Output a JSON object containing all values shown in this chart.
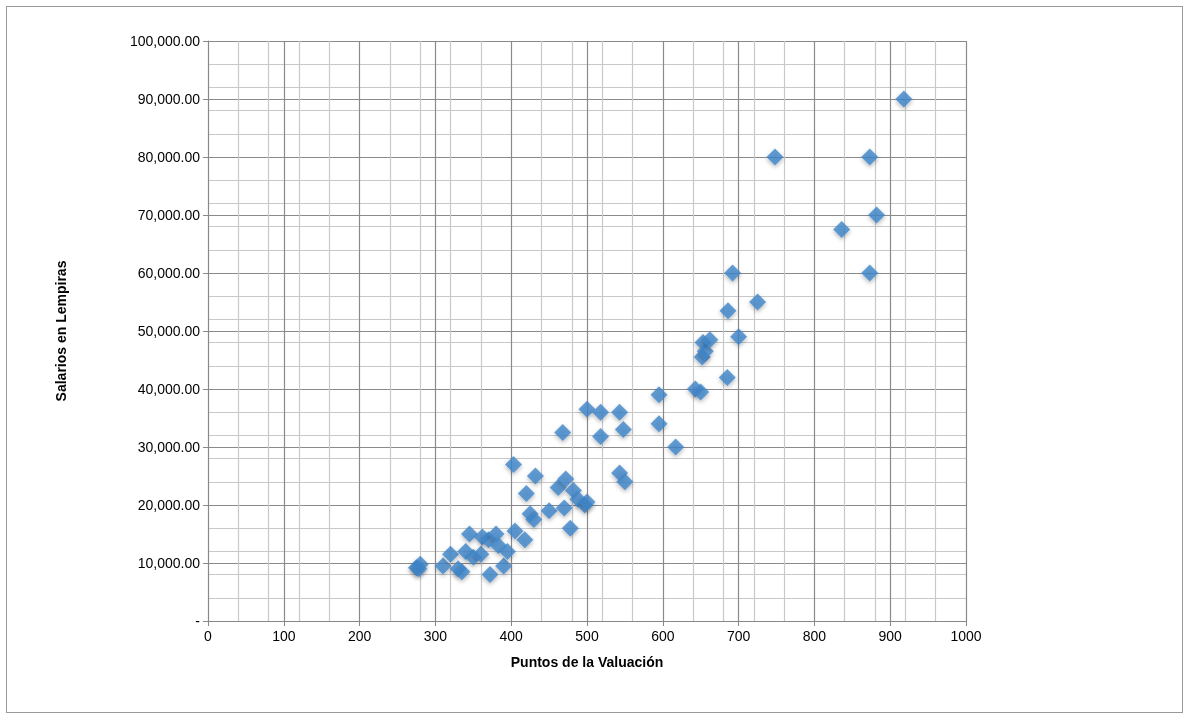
{
  "chart_data": {
    "type": "scatter",
    "xlabel": "Puntos de la Valuación",
    "ylabel": "Salarios en Lempiras",
    "marker": "diamond",
    "grid": true,
    "xlim": [
      0,
      1000
    ],
    "xticks": [
      0,
      100,
      200,
      300,
      400,
      500,
      600,
      700,
      800,
      900,
      1000
    ],
    "ylim": [
      0,
      100000
    ],
    "yticks": [
      {
        "value": 0,
        "label": "-"
      },
      {
        "value": 10000,
        "label": "10,000.00"
      },
      {
        "value": 20000,
        "label": "20,000.00"
      },
      {
        "value": 30000,
        "label": "30,000.00"
      },
      {
        "value": 40000,
        "label": "40,000.00"
      },
      {
        "value": 50000,
        "label": "50,000.00"
      },
      {
        "value": 60000,
        "label": "60,000.00"
      },
      {
        "value": 70000,
        "label": "70,000.00"
      },
      {
        "value": 80000,
        "label": "80,000.00"
      },
      {
        "value": 90000,
        "label": "90,000.00"
      },
      {
        "value": 100000,
        "label": "100,000.00"
      }
    ],
    "series": [
      {
        "color": "#3f86c9",
        "x": [
          275,
          280,
          278,
          310,
          320,
          330,
          335,
          340,
          345,
          350,
          360,
          362,
          370,
          372,
          380,
          383,
          390,
          395,
          405,
          403,
          418,
          420,
          425,
          430,
          432,
          450,
          462,
          468,
          470,
          472,
          478,
          482,
          488,
          497,
          500,
          500,
          518,
          518,
          543,
          543,
          548,
          550,
          595,
          595,
          617,
          643,
          650,
          652,
          653,
          656,
          662,
          685,
          686,
          692,
          700,
          725,
          748,
          836,
          873,
          873,
          882,
          918
        ],
        "values": [
          9200,
          9800,
          9000,
          9500,
          11500,
          9000,
          8500,
          12000,
          15000,
          11000,
          11500,
          14500,
          14000,
          8000,
          15000,
          13000,
          9500,
          12000,
          15500,
          27000,
          14000,
          22000,
          18500,
          17500,
          25000,
          19000,
          23000,
          32500,
          19500,
          24500,
          16000,
          22500,
          21000,
          20000,
          36500,
          20500,
          36000,
          31800,
          36000,
          25500,
          33000,
          24000,
          39000,
          34000,
          30000,
          40000,
          39500,
          45500,
          48000,
          46500,
          48500,
          42000,
          53500,
          60000,
          49000,
          55000,
          80000,
          67500,
          80000,
          60000,
          70000,
          90000
        ]
      }
    ]
  }
}
